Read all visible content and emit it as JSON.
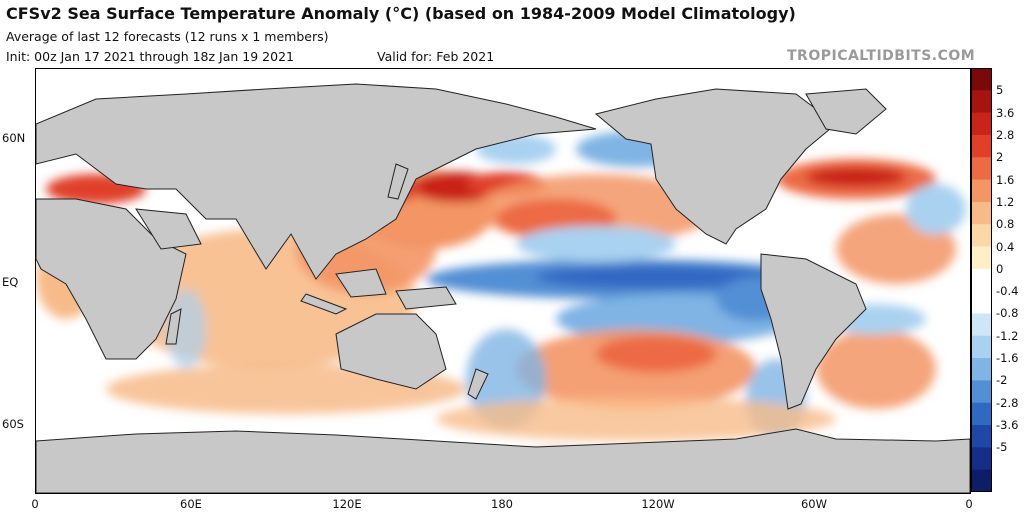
{
  "header": {
    "title": "CFSv2 Sea Surface Temperature Anomaly (°C) (based on 1984-2009 Model Climatology)",
    "subtitle": "Average of last 12 forecasts (12 runs x 1 members)",
    "init": "Init: 00z Jan 17 2021 through 18z Jan 19 2021",
    "valid": "Valid for: Feb 2021",
    "brand": "TROPICALTIDBITS.COM"
  },
  "map": {
    "lat_labels": [
      "60N",
      "EQ",
      "60S"
    ],
    "lon_labels": [
      "0",
      "60E",
      "120E",
      "180",
      "120W",
      "60W",
      "0"
    ],
    "land_color": "#c8c8c8",
    "ocean_base": "#ffffff"
  },
  "colorbar": {
    "labels": [
      "5",
      "3.6",
      "2.8",
      "2",
      "1.6",
      "1.2",
      "0.8",
      "0.4",
      "0",
      "-0.4",
      "-0.8",
      "-1.2",
      "-1.6",
      "-2",
      "-2.8",
      "-3.6",
      "-5"
    ],
    "colors": [
      "#7a0a0a",
      "#a61410",
      "#c92418",
      "#e0402a",
      "#ec6b45",
      "#f39565",
      "#f7bb8a",
      "#fbd9a7",
      "#fdf0c6",
      "#ffffff",
      "#ffffff",
      "#cfe6f6",
      "#a9d1f0",
      "#7fb4e4",
      "#538fd4",
      "#3069c2",
      "#1f47a7",
      "#152e87",
      "#0d1d66"
    ]
  }
}
